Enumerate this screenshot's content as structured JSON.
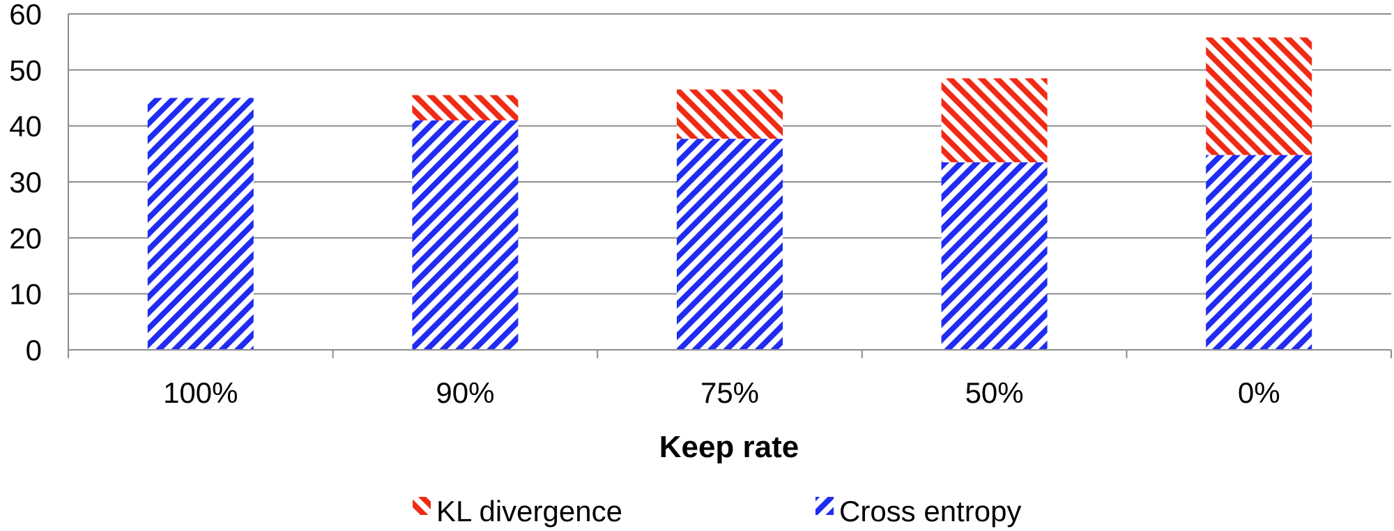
{
  "chart_data": {
    "type": "bar",
    "stacked": true,
    "categories": [
      "100%",
      "90%",
      "75%",
      "50%",
      "0%"
    ],
    "series": [
      {
        "name": "Cross entropy",
        "values": [
          45,
          41,
          37.7,
          33.5,
          34.8
        ],
        "color": "#1f2cf2",
        "pattern": "diagonal-stripes"
      },
      {
        "name": "KL divergence",
        "values": [
          0,
          4.5,
          8.8,
          15.0,
          21.0
        ],
        "color": "#f02b15",
        "pattern": "diagonal-stripes"
      }
    ],
    "title": "",
    "xlabel": "Keep rate",
    "ylabel": "",
    "ylim": [
      0,
      60
    ],
    "yticks": [
      0,
      10,
      20,
      30,
      40,
      50,
      60
    ],
    "grid": true,
    "legend": {
      "placement": "bottom",
      "entries": [
        "KL divergence",
        "Cross entropy"
      ]
    }
  }
}
